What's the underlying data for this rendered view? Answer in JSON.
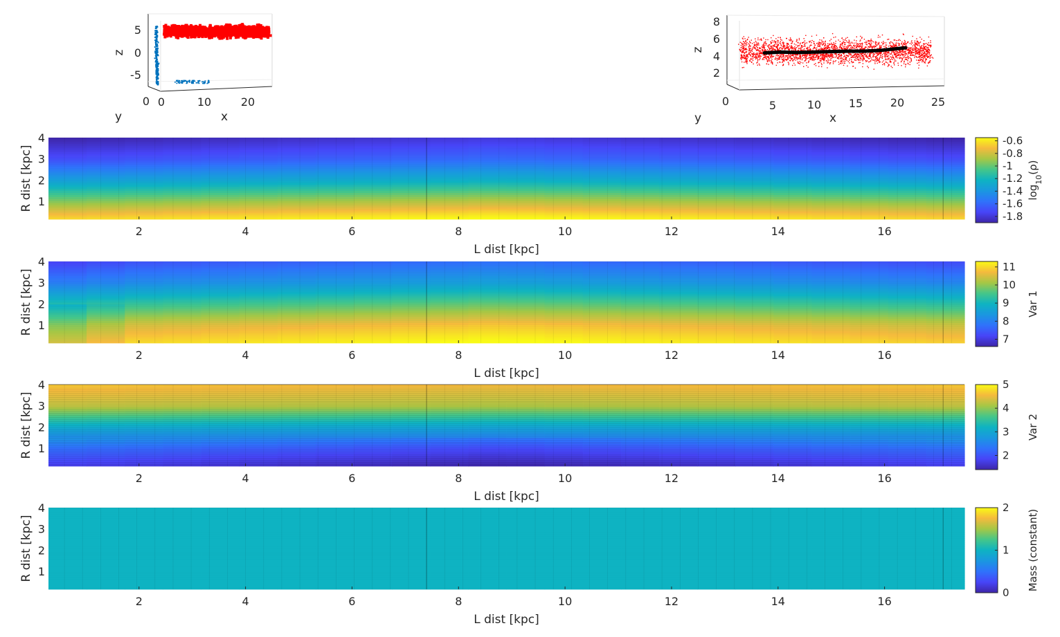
{
  "chart_data": [
    {
      "type": "scatter",
      "id": "scatter3d-left",
      "title": "",
      "xlabel": "x",
      "ylabel": "y",
      "zlabel": "z",
      "x_ticks": [
        "0",
        "10",
        "20"
      ],
      "y_ticks": [
        "0"
      ],
      "z_ticks": [
        "5",
        "0",
        "-5"
      ],
      "xlim": [
        0,
        25
      ],
      "zlim": [
        -8,
        8
      ],
      "series": [
        {
          "color": "#ff0000",
          "shape": "cloud",
          "x_range": [
            0.5,
            24.5
          ],
          "z_range": [
            2,
            8
          ]
        },
        {
          "color": "#0072bd",
          "shape": "vertical-strip",
          "z_range": [
            -7,
            6
          ]
        },
        {
          "color": "#0072bd",
          "shape": "horizontal-strip",
          "x_range": [
            3,
            11
          ],
          "z_range": [
            -6.6,
            -5.9
          ]
        }
      ]
    },
    {
      "type": "scatter",
      "id": "scatter3d-right",
      "title": "",
      "xlabel": "x",
      "ylabel": "y",
      "zlabel": "z",
      "x_ticks": [
        "0",
        "5",
        "10",
        "15",
        "20",
        "25"
      ],
      "z_ticks": [
        "8",
        "6",
        "4",
        "2"
      ],
      "xlim": [
        0,
        25
      ],
      "zlim": [
        1,
        9
      ],
      "series": [
        {
          "color": "#ff0000",
          "shape": "points",
          "x_range": [
            1,
            24
          ],
          "z_range": [
            1.8,
            8.0
          ]
        },
        {
          "color": "#000000",
          "shape": "line",
          "x": [
            4,
            6,
            8,
            10,
            12,
            14,
            16,
            18,
            20,
            21
          ],
          "z": [
            4.4,
            4.5,
            4.45,
            4.5,
            4.55,
            4.6,
            4.6,
            4.7,
            4.9,
            5.0
          ]
        }
      ]
    },
    {
      "type": "heatmap",
      "id": "heatmap-density",
      "xlabel": "L dist [kpc]",
      "ylabel": "R dist [kpc]",
      "x_ticks": [
        "2",
        "4",
        "6",
        "8",
        "10",
        "12",
        "14",
        "16"
      ],
      "y_ticks": [
        "1",
        "2",
        "3",
        "4"
      ],
      "xlim": [
        0.3,
        17.5
      ],
      "ylim": [
        0.15,
        4.0
      ],
      "colorbar": {
        "label_base": "log",
        "label_sub": "10",
        "label_arg": "(ρ)",
        "ticks": [
          "-0.6",
          "-0.8",
          "-1",
          "-1.2",
          "-1.4",
          "-1.6",
          "-1.8"
        ],
        "range": [
          -1.9,
          -0.55
        ]
      },
      "profile": {
        "r": [
          0.2,
          1.0,
          2.0,
          3.0,
          4.0
        ],
        "values": [
          -0.6,
          -0.9,
          -1.3,
          -1.65,
          -1.85
        ]
      }
    },
    {
      "type": "heatmap",
      "id": "heatmap-var1",
      "xlabel": "L dist [kpc]",
      "ylabel": "R dist [kpc]",
      "x_ticks": [
        "2",
        "4",
        "6",
        "8",
        "10",
        "12",
        "14",
        "16"
      ],
      "y_ticks": [
        "1",
        "2",
        "3",
        "4"
      ],
      "xlim": [
        0.3,
        17.5
      ],
      "ylim": [
        0.15,
        4.0
      ],
      "colorbar": {
        "label": "Var 1",
        "ticks": [
          "11",
          "10",
          "9",
          "8",
          "7"
        ],
        "range": [
          6.6,
          11.3
        ]
      },
      "profile": {
        "r": [
          0.2,
          1.0,
          2.0,
          3.0,
          4.0
        ],
        "values": [
          11.1,
          10.6,
          9.5,
          8.3,
          7.5
        ]
      }
    },
    {
      "type": "heatmap",
      "id": "heatmap-var2",
      "xlabel": "L dist [kpc]",
      "ylabel": "R dist [kpc]",
      "x_ticks": [
        "2",
        "4",
        "6",
        "8",
        "10",
        "12",
        "14",
        "16"
      ],
      "y_ticks": [
        "1",
        "2",
        "3",
        "4"
      ],
      "xlim": [
        0.3,
        17.5
      ],
      "ylim": [
        0.15,
        4.0
      ],
      "colorbar": {
        "label": "Var 2",
        "ticks": [
          "5",
          "4",
          "3",
          "2"
        ],
        "range": [
          1.4,
          5.0
        ]
      },
      "profile": {
        "r": [
          0.2,
          1.0,
          2.0,
          3.0,
          4.0
        ],
        "values": [
          1.6,
          2.1,
          3.0,
          4.2,
          4.6
        ]
      }
    },
    {
      "type": "heatmap",
      "id": "heatmap-mass",
      "xlabel": "L dist [kpc]",
      "ylabel": "R dist [kpc]",
      "x_ticks": [
        "2",
        "4",
        "6",
        "8",
        "10",
        "12",
        "14",
        "16"
      ],
      "y_ticks": [
        "1",
        "2",
        "3",
        "4"
      ],
      "xlim": [
        0.3,
        17.5
      ],
      "ylim": [
        0.15,
        4.0
      ],
      "colorbar": {
        "label": "Mass (constant)",
        "ticks": [
          "2",
          "1",
          "0"
        ],
        "range": [
          0,
          2
        ]
      },
      "profile": {
        "r": [
          0.2,
          4.0
        ],
        "values": [
          1.0,
          1.0
        ]
      }
    }
  ]
}
